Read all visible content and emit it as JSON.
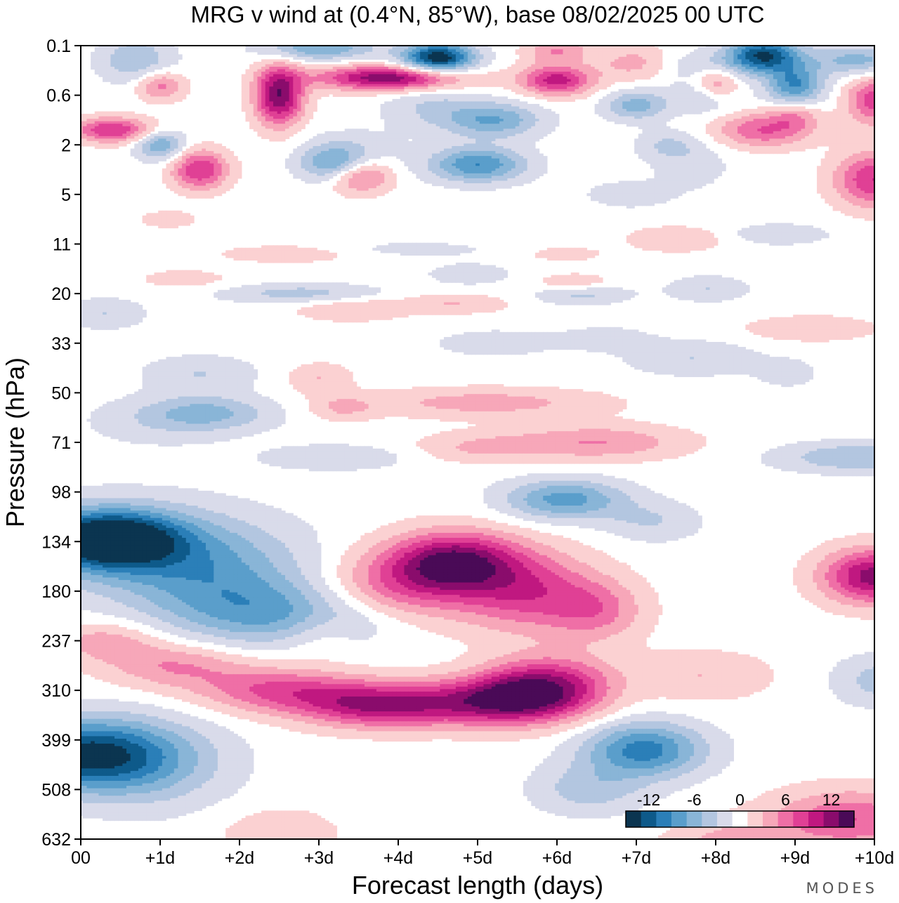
{
  "chart_data": {
    "type": "heatmap",
    "title": "MRG v wind at (0.4°N, 85°W),  base 08/02/2025  00 UTC",
    "xlabel": "Forecast length (days)",
    "ylabel": "Pressure (hPa)",
    "x_ticks": [
      "00",
      "+1d",
      "+2d",
      "+3d",
      "+4d",
      "+5d",
      "+6d",
      "+7d",
      "+8d",
      "+9d",
      "+10d"
    ],
    "y_ticks": [
      "0.1",
      "0.6",
      "2",
      "5",
      "11",
      "20",
      "33",
      "50",
      "71",
      "98",
      "134",
      "180",
      "237",
      "310",
      "399",
      "508",
      "632"
    ],
    "xlim": [
      0,
      10
    ],
    "ylim_hPa": [
      0.1,
      632
    ],
    "colorbar": {
      "levels": [
        -15,
        -13,
        -11,
        -9,
        -7,
        -5,
        -3,
        -1,
        1,
        3,
        5,
        7,
        9,
        11,
        13,
        15
      ],
      "labels": [
        "-12",
        "-6",
        "0",
        "6",
        "12"
      ],
      "colors": [
        "#0b3550",
        "#0e5a8a",
        "#2b7fb8",
        "#5a9ecb",
        "#89b5d7",
        "#b3c6e0",
        "#d9dbea",
        "#ffffff",
        "#fbd1d2",
        "#f7a7b9",
        "#ef6fa6",
        "#e04095",
        "#c01880",
        "#8a0c6c",
        "#4a0a57"
      ]
    },
    "features": [
      {
        "kind": "max",
        "day": 0.4,
        "hPa": 134,
        "value": -15
      },
      {
        "kind": "min",
        "day": 0.0,
        "hPa": 399,
        "value": -11
      },
      {
        "kind": "min",
        "day": 7.1,
        "hPa": 399,
        "value": -9
      },
      {
        "kind": "min",
        "day": 6.1,
        "hPa": 105,
        "value": -7
      },
      {
        "kind": "max",
        "day": 4.8,
        "hPa": 140,
        "value": 11
      },
      {
        "kind": "max",
        "day": 5.0,
        "hPa": 330,
        "value": 11
      },
      {
        "kind": "max",
        "day": 10.0,
        "hPa": 160,
        "value": 11
      },
      {
        "kind": "min",
        "day": 4.5,
        "hPa": 0.2,
        "value": -15
      },
      {
        "kind": "max",
        "day": 4.0,
        "hPa": 0.45,
        "value": 13
      },
      {
        "kind": "max",
        "day": 2.5,
        "hPa": 1.1,
        "value": 13
      },
      {
        "kind": "min",
        "day": 8.8,
        "hPa": 0.25,
        "value": -13
      }
    ]
  },
  "branding": {
    "watermark": "MODES"
  }
}
